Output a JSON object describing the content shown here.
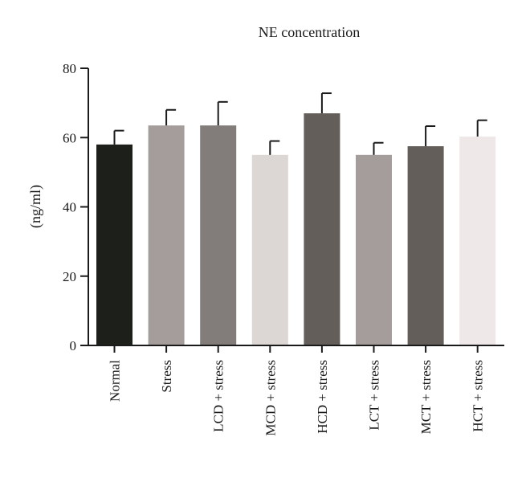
{
  "chart_data": {
    "type": "bar",
    "title": "NE concentration",
    "xlabel": "",
    "ylabel": "(ng/ml)",
    "ylim": [
      0,
      80
    ],
    "yticks": [
      "0",
      "20",
      "40",
      "60",
      "80"
    ],
    "grid": false,
    "categories": [
      "Normal",
      "Stress",
      "LCD + stress",
      "MCD + stress",
      "HCD + stress",
      "LCT + stress",
      "MCT + stress",
      "HCT + stress"
    ],
    "values": [
      58,
      63.5,
      63.5,
      55,
      67,
      55,
      57.5,
      60.3
    ],
    "errors": [
      4,
      4.5,
      6.8,
      4,
      5.8,
      3.5,
      5.8,
      4.7
    ],
    "colors": [
      "#1c1f1a",
      "#a49d9c",
      "#827d7b",
      "#dcd6d4",
      "#645e5b",
      "#a49d9c",
      "#645e5b",
      "#efe8e8"
    ]
  }
}
